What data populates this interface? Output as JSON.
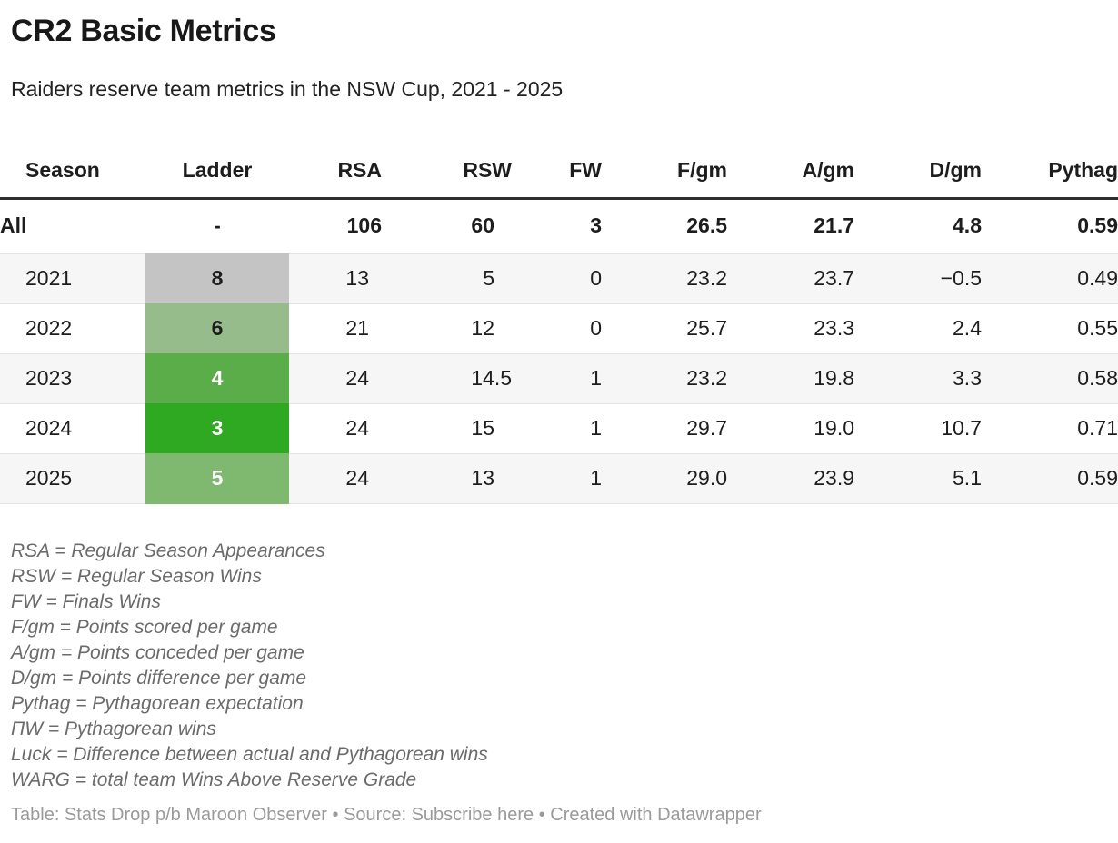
{
  "header": {
    "title": "CR2 Basic Metrics",
    "subtitle": "Raiders reserve team metrics in the NSW Cup, 2021 - 2025"
  },
  "chart_data": {
    "type": "table",
    "title": "CR2 Basic Metrics",
    "subtitle": "Raiders reserve team metrics in the NSW Cup, 2021 - 2025",
    "columns": [
      {
        "key": "season",
        "label": "Season",
        "align": "left"
      },
      {
        "key": "ladder",
        "label": "Ladder",
        "align": "center",
        "heatmap": true
      },
      {
        "key": "rsa",
        "label": "RSA",
        "align": "right"
      },
      {
        "key": "rsw",
        "label": "RSW",
        "align": "right"
      },
      {
        "key": "fw",
        "label": "FW",
        "align": "right"
      },
      {
        "key": "fgm",
        "label": "F/gm",
        "align": "right"
      },
      {
        "key": "agm",
        "label": "A/gm",
        "align": "right"
      },
      {
        "key": "dgm",
        "label": "D/gm",
        "align": "right"
      },
      {
        "key": "pythag",
        "label": "Pythag",
        "align": "right",
        "clipped_at_right_edge": true
      }
    ],
    "rows": [
      {
        "season": "All",
        "ladder": "-",
        "rsa": "106",
        "rsw": "60",
        "fw": "3",
        "fgm": "26.5",
        "agm": "21.7",
        "dgm": "4.8",
        "pythag": "0.59",
        "bold": true
      },
      {
        "season": "2021",
        "ladder": "8",
        "rsa": "13",
        "rsw": "5",
        "fw": "0",
        "fgm": "23.2",
        "agm": "23.7",
        "dgm": "−0.5",
        "pythag": "0.49",
        "zebra": true,
        "ladder_bg": "#c4c4c4",
        "ladder_color": "#1d1d1d"
      },
      {
        "season": "2022",
        "ladder": "6",
        "rsa": "21",
        "rsw": "12",
        "fw": "0",
        "fgm": "25.7",
        "agm": "23.3",
        "dgm": "2.4",
        "pythag": "0.55",
        "zebra": false,
        "ladder_bg": "#96bc8b",
        "ladder_color": "#1d1d1d"
      },
      {
        "season": "2023",
        "ladder": "4",
        "rsa": "24",
        "rsw": "14.5",
        "fw": "1",
        "fgm": "23.2",
        "agm": "19.8",
        "dgm": "3.3",
        "pythag": "0.58",
        "zebra": true,
        "ladder_bg": "#5bad49",
        "ladder_color": "#ffffff"
      },
      {
        "season": "2024",
        "ladder": "3",
        "rsa": "24",
        "rsw": "15",
        "fw": "1",
        "fgm": "29.7",
        "agm": "19.0",
        "dgm": "10.7",
        "pythag": "0.71",
        "zebra": false,
        "ladder_bg": "#2fa822",
        "ladder_color": "#ffffff"
      },
      {
        "season": "2025",
        "ladder": "5",
        "rsa": "24",
        "rsw": "13",
        "fw": "1",
        "fgm": "29.0",
        "agm": "23.9",
        "dgm": "5.1",
        "pythag": "0.59",
        "zebra": true,
        "ladder_bg": "#7eb96f",
        "ladder_color": "#ffffff"
      }
    ]
  },
  "footnotes": [
    "RSA = Regular Season Appearances",
    "RSW = Regular Season Wins",
    "FW = Finals Wins",
    "F/gm = Points scored per game",
    "A/gm = Points conceded per game",
    "D/gm = Points difference per game",
    "Pythag = Pythagorean expectation",
    "ΠW = Pythagorean wins",
    "Luck = Difference between actual and Pythagorean wins",
    "WARG = total team Wins Above Reserve Grade"
  ],
  "footer": {
    "table_credit": "Table: Stats Drop p/b Maroon Observer",
    "separator": "•",
    "source_label": "Source:",
    "source_link_label": "Subscribe here",
    "created_label": "Created with Datawrapper"
  },
  "colors": {
    "header_rule": "#2e2e2e",
    "row_divider": "#e4e4e4",
    "zebra_bg": "#f6f6f6",
    "ladder_scale": [
      "#c4c4c4",
      "#96bc8b",
      "#7eb96f",
      "#5bad49",
      "#2fa822"
    ]
  }
}
